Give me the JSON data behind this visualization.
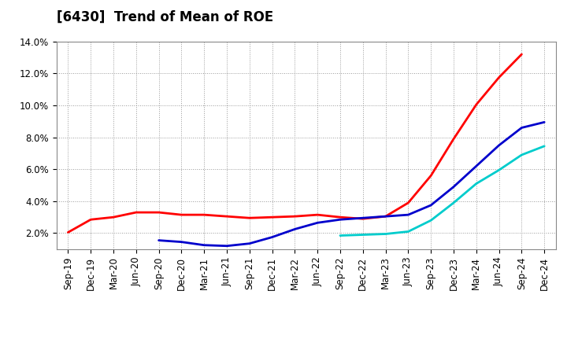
{
  "title": "[6430]  Trend of Mean of ROE",
  "ylim": [
    0.01,
    0.14
  ],
  "yticks": [
    0.02,
    0.04,
    0.06,
    0.08,
    0.1,
    0.12,
    0.14
  ],
  "ytick_labels": [
    "2.0%",
    "4.0%",
    "6.0%",
    "8.0%",
    "10.0%",
    "12.0%",
    "14.0%"
  ],
  "x_labels": [
    "Sep-19",
    "Dec-19",
    "Mar-20",
    "Jun-20",
    "Sep-20",
    "Dec-20",
    "Mar-21",
    "Jun-21",
    "Sep-21",
    "Dec-21",
    "Mar-22",
    "Jun-22",
    "Sep-22",
    "Dec-22",
    "Mar-23",
    "Jun-23",
    "Sep-23",
    "Dec-23",
    "Mar-24",
    "Jun-24",
    "Sep-24",
    "Dec-24"
  ],
  "colors": {
    "3yr": "#ff0000",
    "5yr": "#0000cc",
    "7yr": "#00cccc",
    "10yr": "#008000"
  },
  "series_3yr": [
    0.0205,
    0.0285,
    0.03,
    0.033,
    0.033,
    0.0315,
    0.0315,
    0.0305,
    0.0295,
    0.03,
    0.0305,
    0.0315,
    0.03,
    0.029,
    0.0305,
    0.039,
    0.056,
    0.079,
    0.1005,
    0.1175,
    0.132,
    null
  ],
  "series_5yr": [
    null,
    null,
    null,
    null,
    0.0155,
    0.0145,
    0.0125,
    0.012,
    0.0135,
    0.0175,
    0.0225,
    0.0265,
    0.0285,
    0.0295,
    0.0305,
    0.0315,
    0.0375,
    0.049,
    0.062,
    0.075,
    0.086,
    0.0895
  ],
  "series_7yr": [
    null,
    null,
    null,
    null,
    null,
    null,
    null,
    null,
    null,
    null,
    null,
    null,
    0.0185,
    0.019,
    0.0195,
    0.021,
    0.028,
    0.039,
    0.051,
    0.0595,
    0.069,
    0.0745
  ],
  "series_10yr": [
    null,
    null,
    null,
    null,
    null,
    null,
    null,
    null,
    null,
    null,
    null,
    null,
    null,
    null,
    null,
    null,
    null,
    null,
    null,
    null,
    null,
    null
  ],
  "background_color": "#ffffff",
  "grid_color": "#999999",
  "title_fontsize": 12,
  "tick_fontsize": 8.5
}
